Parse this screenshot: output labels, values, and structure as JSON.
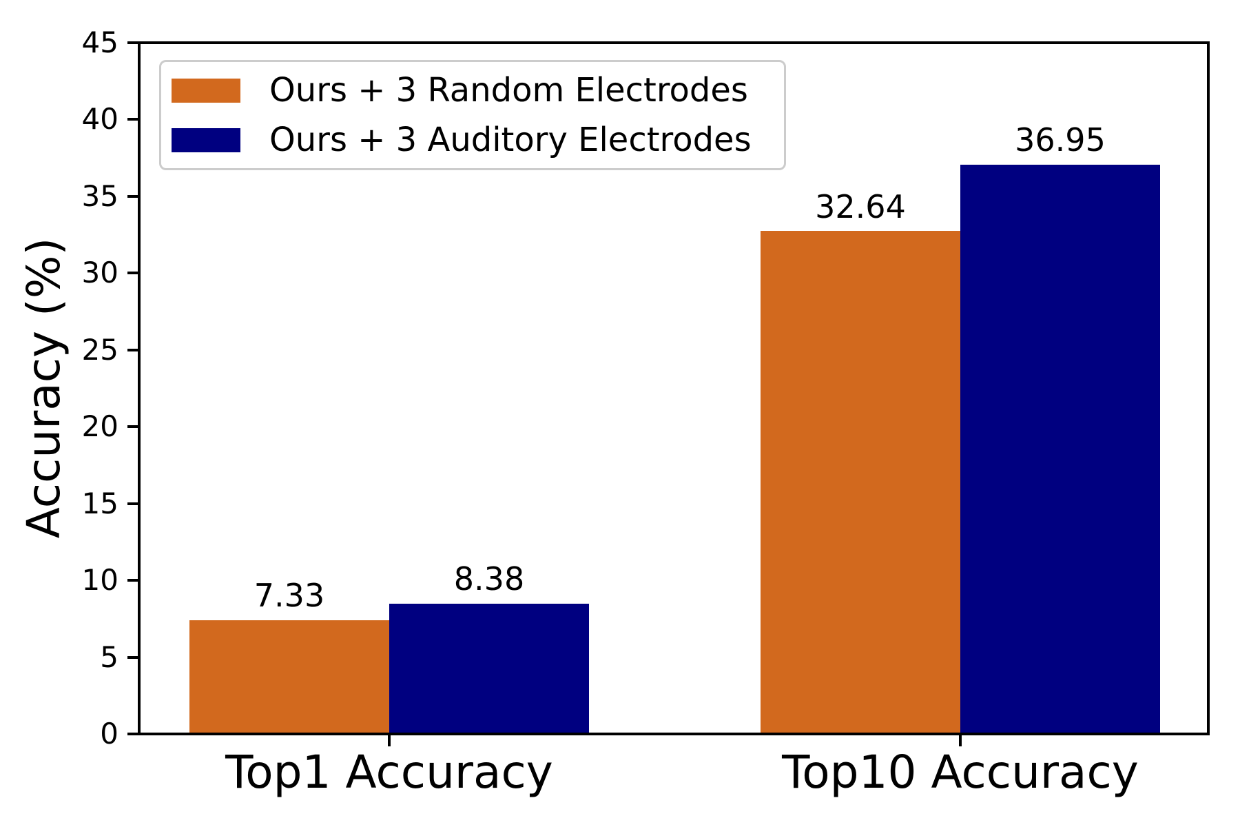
{
  "chart_data": {
    "type": "bar",
    "title": "",
    "xlabel": "",
    "ylabel": "Accuracy (%)",
    "categories": [
      "Top1 Accuracy",
      "Top10 Accuracy"
    ],
    "series": [
      {
        "name": "Ours + 3 Random Electrodes",
        "color": "#d2691e",
        "values": [
          7.33,
          32.64
        ]
      },
      {
        "name": "Ours + 3 Auditory Electrodes",
        "color": "#000080",
        "values": [
          8.38,
          36.95
        ]
      }
    ],
    "ylim": [
      0,
      45
    ],
    "yticks": [
      0,
      5,
      10,
      15,
      20,
      25,
      30,
      35,
      40,
      45
    ],
    "grid": false,
    "legend_position": "upper left",
    "value_labels": true,
    "spine_color": "#000000",
    "background_color": "#ffffff"
  }
}
